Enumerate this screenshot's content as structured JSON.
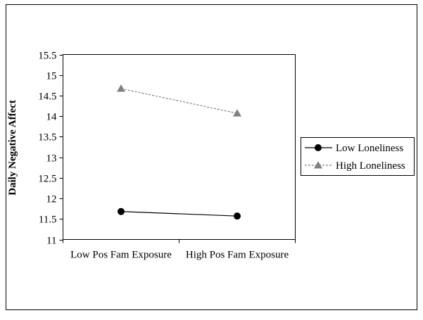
{
  "chart_data": {
    "type": "line",
    "title": "",
    "xlabel": "",
    "ylabel": "Daily Negative Affect",
    "categories": [
      "Low Pos Fam Exposure",
      "High Pos Fam Exposure"
    ],
    "ylim": [
      11,
      15.5
    ],
    "yticks": [
      "11",
      "11.5",
      "12",
      "12.5",
      "13",
      "13.5",
      "14",
      "14.5",
      "15",
      "15.5"
    ],
    "grid": false,
    "legend_position": "right",
    "series": [
      {
        "name": "Low Loneliness",
        "values": [
          11.68,
          11.57
        ],
        "color": "#000000",
        "marker": "circle",
        "line_style": "solid"
      },
      {
        "name": "High Loneliness",
        "values": [
          14.67,
          14.07
        ],
        "color": "#808080",
        "marker": "triangle",
        "line_style": "dashed"
      }
    ]
  }
}
